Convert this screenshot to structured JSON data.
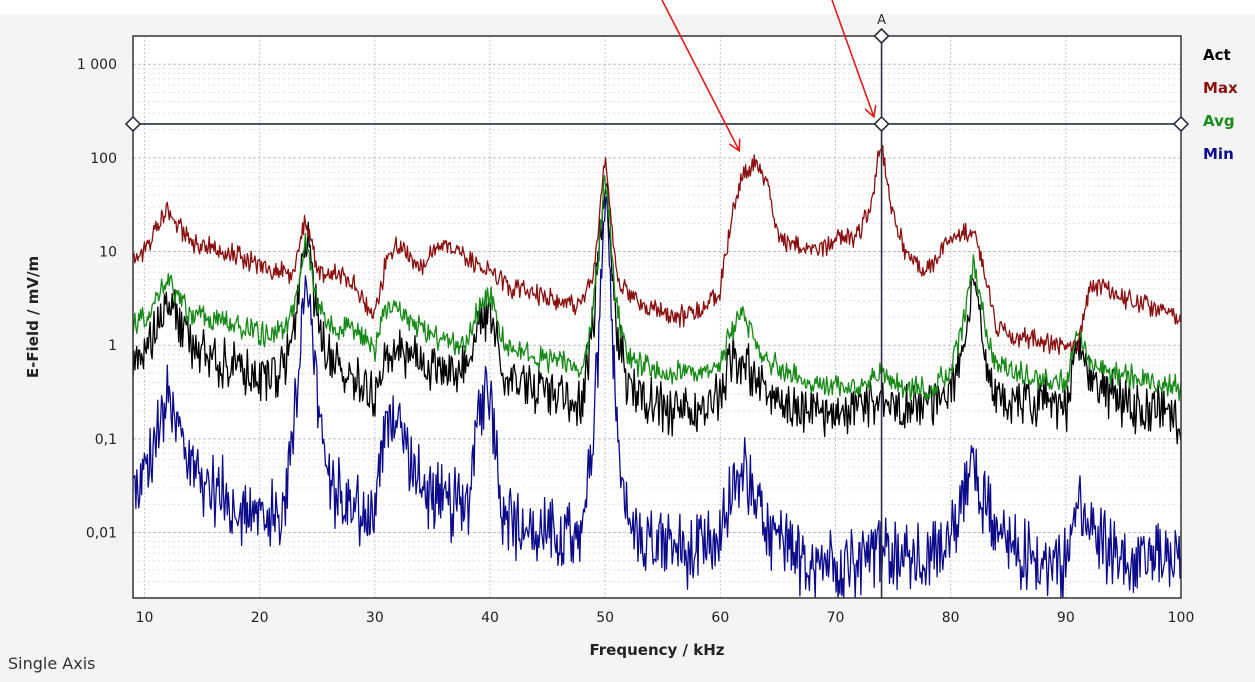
{
  "footer": {
    "label": "Single Axis"
  },
  "colors": {
    "act": "#000000",
    "max": "#8b1010",
    "avg": "#178a17",
    "min": "#0b0b8c",
    "marker": "#2a2f3d",
    "annotation_arrow": "#e41b1b",
    "plot_background": "#ffffff",
    "frame_background": "#f4f4f4",
    "grid": "#c8c8c8"
  },
  "chart_data": {
    "type": "line",
    "title": "",
    "xlabel": "Frequency / kHz",
    "ylabel": "E-Field / mV/m",
    "xlim": [
      9,
      100
    ],
    "ylim": [
      0.002,
      2000
    ],
    "yscale": "log",
    "grid": true,
    "legend_position": "right",
    "x_ticks": [
      10,
      20,
      30,
      40,
      50,
      60,
      70,
      80,
      90,
      100
    ],
    "x_tick_labels": [
      "10",
      "20",
      "30",
      "40",
      "50",
      "60",
      "70",
      "80",
      "90",
      "100"
    ],
    "y_ticks": [
      0.01,
      0.1,
      1,
      10,
      100,
      1000
    ],
    "y_tick_labels": [
      "0,01",
      "0,1",
      "1",
      "10",
      "100",
      "1 000"
    ],
    "markers": [
      {
        "label": "A",
        "x": 74,
        "y": 230
      }
    ],
    "annotations": [
      {
        "type": "arrow",
        "points_to": {
          "x": 63,
          "y": 110
        }
      },
      {
        "type": "arrow",
        "points_to": {
          "x": 74,
          "y": 230
        }
      }
    ],
    "series": [
      {
        "name": "Act",
        "x": [
          10,
          12,
          14,
          16,
          18,
          20,
          22,
          23,
          24,
          25,
          26,
          28,
          30,
          31,
          32,
          34,
          36,
          38,
          39,
          40,
          41,
          42,
          44,
          46,
          48,
          49,
          50,
          51,
          52,
          54,
          56,
          58,
          60,
          61,
          62,
          63,
          64,
          66,
          68,
          70,
          72,
          73,
          74,
          75,
          76,
          78,
          80,
          81,
          82,
          83,
          84,
          86,
          88,
          90,
          91,
          92,
          94,
          96,
          98,
          100
        ],
        "y": [
          0.8,
          3,
          1.1,
          0.7,
          0.6,
          0.45,
          0.55,
          1.5,
          18,
          2,
          0.7,
          0.45,
          0.3,
          1,
          0.9,
          0.7,
          0.5,
          0.6,
          1.5,
          2.5,
          0.6,
          0.45,
          0.35,
          0.3,
          0.25,
          2,
          60,
          1.5,
          0.35,
          0.25,
          0.2,
          0.2,
          0.3,
          0.8,
          0.6,
          0.5,
          0.3,
          0.2,
          0.2,
          0.18,
          0.2,
          0.25,
          0.3,
          0.22,
          0.2,
          0.22,
          0.3,
          0.8,
          5,
          0.8,
          0.3,
          0.25,
          0.25,
          0.2,
          1,
          0.4,
          0.3,
          0.2,
          0.2,
          0.15
        ]
      },
      {
        "name": "Max",
        "x": [
          9,
          10,
          12,
          14,
          16,
          18,
          20,
          22,
          23,
          24,
          25,
          26,
          28,
          30,
          31,
          32,
          34,
          35,
          36,
          38,
          40,
          42,
          44,
          46,
          48,
          49,
          50,
          51,
          52,
          54,
          56,
          58,
          60,
          61,
          62,
          63,
          64,
          65,
          66,
          68,
          70,
          72,
          73,
          74,
          75,
          76,
          78,
          80,
          81,
          82,
          83,
          84,
          86,
          88,
          90,
          91,
          92,
          93,
          94,
          96,
          98,
          100
        ],
        "y": [
          8,
          10,
          30,
          12,
          11,
          9,
          7,
          6,
          6,
          22,
          6,
          6,
          5,
          2,
          8,
          12,
          7,
          10,
          12,
          8,
          6,
          4,
          3.5,
          3,
          2.7,
          6,
          100,
          5,
          3.5,
          2.5,
          2,
          2.2,
          4,
          25,
          70,
          85,
          60,
          15,
          12,
          10,
          13,
          15,
          30,
          150,
          25,
          10,
          6,
          15,
          16,
          15,
          6,
          1.6,
          1.2,
          1.1,
          1,
          1,
          4,
          4.5,
          3.5,
          3,
          2.5,
          1.8
        ]
      },
      {
        "name": "Avg",
        "x": [
          9,
          10,
          12,
          14,
          16,
          18,
          20,
          22,
          23,
          24,
          25,
          26,
          28,
          30,
          31,
          32,
          34,
          36,
          38,
          39,
          40,
          41,
          42,
          44,
          46,
          48,
          49,
          50,
          51,
          52,
          54,
          56,
          58,
          60,
          61,
          62,
          63,
          64,
          66,
          68,
          70,
          72,
          73,
          74,
          75,
          76,
          78,
          80,
          81,
          82,
          83,
          84,
          86,
          88,
          90,
          91,
          92,
          94,
          96,
          98,
          100
        ],
        "y": [
          1.8,
          1.9,
          5,
          2,
          1.9,
          1.6,
          1.3,
          1.4,
          2.5,
          15,
          3,
          1.6,
          1.4,
          0.9,
          2.5,
          2.2,
          1.5,
          1.1,
          1.0,
          2.5,
          3.5,
          1.2,
          0.9,
          0.75,
          0.65,
          0.55,
          2.5,
          70,
          2.5,
          0.7,
          0.55,
          0.5,
          0.5,
          0.65,
          1.5,
          2,
          1.2,
          0.7,
          0.5,
          0.4,
          0.35,
          0.35,
          0.4,
          0.5,
          0.4,
          0.35,
          0.35,
          0.55,
          1.5,
          8,
          1.5,
          0.6,
          0.5,
          0.45,
          0.4,
          1.5,
          0.7,
          0.5,
          0.45,
          0.4,
          0.35
        ]
      },
      {
        "name": "Min",
        "x": [
          9,
          10,
          12,
          14,
          16,
          18,
          20,
          22,
          23,
          24,
          25,
          26,
          28,
          30,
          31,
          32,
          34,
          36,
          38,
          39,
          40,
          41,
          42,
          44,
          46,
          48,
          49,
          50,
          51,
          52,
          54,
          56,
          58,
          60,
          61,
          62,
          63,
          64,
          66,
          68,
          70,
          72,
          73,
          74,
          75,
          76,
          78,
          80,
          81,
          82,
          83,
          84,
          86,
          88,
          90,
          91,
          92,
          94,
          96,
          98,
          100
        ],
        "y": [
          0.03,
          0.04,
          0.25,
          0.05,
          0.03,
          0.02,
          0.015,
          0.015,
          0.15,
          8,
          0.3,
          0.03,
          0.02,
          0.015,
          0.2,
          0.15,
          0.03,
          0.02,
          0.018,
          0.2,
          0.4,
          0.02,
          0.012,
          0.01,
          0.009,
          0.008,
          0.1,
          40,
          0.2,
          0.01,
          0.008,
          0.007,
          0.006,
          0.008,
          0.03,
          0.05,
          0.02,
          0.01,
          0.006,
          0.005,
          0.005,
          0.005,
          0.006,
          0.008,
          0.006,
          0.005,
          0.005,
          0.008,
          0.03,
          0.06,
          0.02,
          0.008,
          0.006,
          0.005,
          0.005,
          0.02,
          0.012,
          0.006,
          0.006,
          0.005,
          0.005
        ]
      }
    ]
  }
}
